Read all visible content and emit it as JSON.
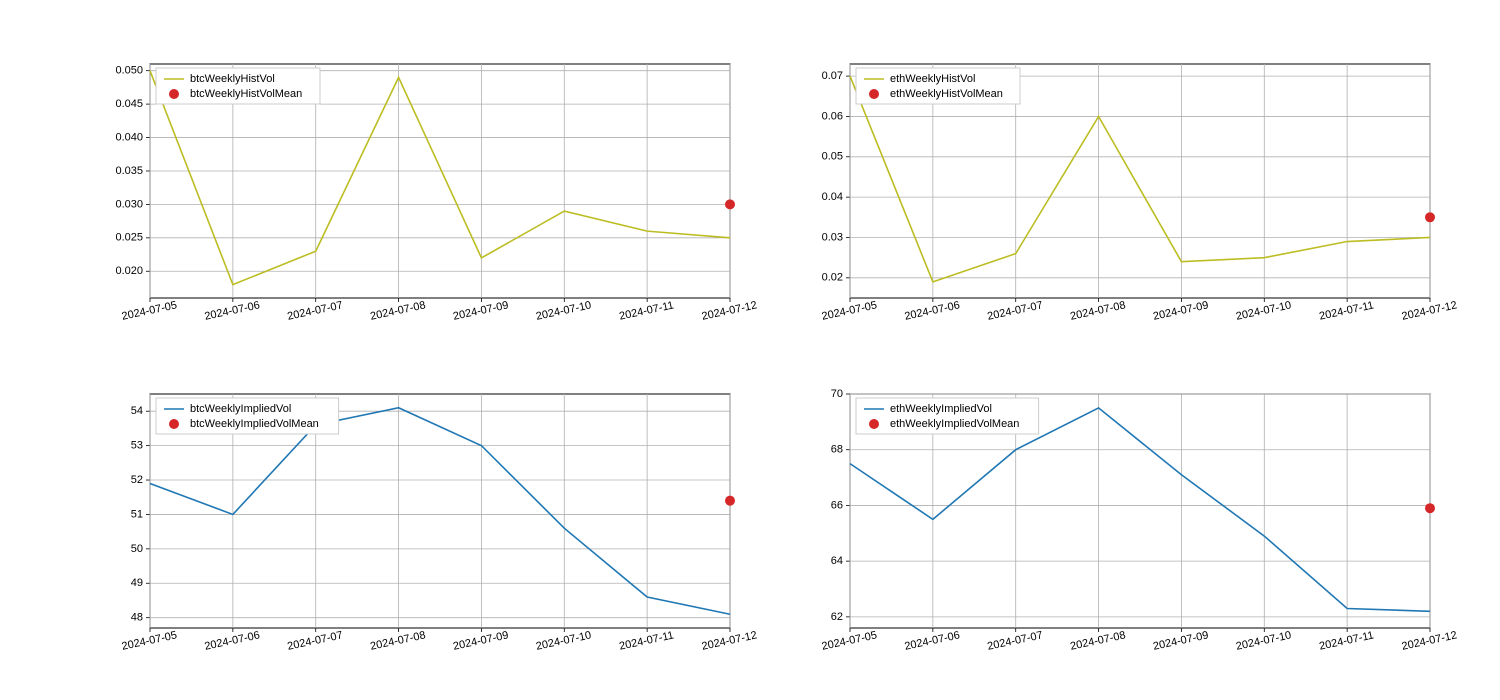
{
  "layout": {
    "figure_width": 1500,
    "figure_height": 700,
    "rows": 2,
    "cols": 2,
    "background_color": "#ffffff"
  },
  "shared": {
    "x_categories": [
      "2024-07-05",
      "2024-07-06",
      "2024-07-07",
      "2024-07-08",
      "2024-07-09",
      "2024-07-10",
      "2024-07-11",
      "2024-07-12"
    ],
    "grid_color": "#b0b0b0",
    "axis_color": "#000000",
    "font_family": "sans-serif",
    "tick_fontsize": 11,
    "legend_fontsize": 11,
    "xlabel_rotation": 12,
    "line_width": 1.6,
    "marker_radius": 5
  },
  "panels": [
    {
      "id": "btc_hist",
      "legend_line_label": "btcWeeklyHistVol",
      "legend_mean_label": "btcWeeklyHistVolMean",
      "line_color": "#bcbd22",
      "mean_color": "#d62728",
      "y_values": [
        0.05,
        0.018,
        0.023,
        0.049,
        0.022,
        0.029,
        0.026,
        0.025
      ],
      "mean_x": "2024-07-12",
      "mean_value": 0.03,
      "ylim": [
        0.016,
        0.051
      ],
      "yticks": [
        0.02,
        0.025,
        0.03,
        0.035,
        0.04,
        0.045,
        0.05
      ],
      "ytick_labels": [
        "0.020",
        "0.025",
        "0.030",
        "0.035",
        "0.040",
        "0.045",
        "0.050"
      ]
    },
    {
      "id": "eth_hist",
      "legend_line_label": "ethWeeklyHistVol",
      "legend_mean_label": "ethWeeklyHistVolMean",
      "line_color": "#bcbd22",
      "mean_color": "#d62728",
      "y_values": [
        0.07,
        0.019,
        0.026,
        0.06,
        0.024,
        0.025,
        0.029,
        0.03
      ],
      "mean_x": "2024-07-12",
      "mean_value": 0.035,
      "ylim": [
        0.015,
        0.073
      ],
      "yticks": [
        0.02,
        0.03,
        0.04,
        0.05,
        0.06,
        0.07
      ],
      "ytick_labels": [
        "0.02",
        "0.03",
        "0.04",
        "0.05",
        "0.06",
        "0.07"
      ]
    },
    {
      "id": "btc_impl",
      "legend_line_label": "btcWeeklyImpliedVol",
      "legend_mean_label": "btcWeeklyImpliedVolMean",
      "line_color": "#1f77b4",
      "mean_color": "#d62728",
      "y_values": [
        51.9,
        51.0,
        53.6,
        54.1,
        53.0,
        50.6,
        48.6,
        48.1
      ],
      "mean_x": "2024-07-12",
      "mean_value": 51.4,
      "ylim": [
        47.7,
        54.5
      ],
      "yticks": [
        48,
        49,
        50,
        51,
        52,
        53,
        54
      ],
      "ytick_labels": [
        "48",
        "49",
        "50",
        "51",
        "52",
        "53",
        "54"
      ]
    },
    {
      "id": "eth_impl",
      "legend_line_label": "ethWeeklyImpliedVol",
      "legend_mean_label": "ethWeeklyImpliedVolMean",
      "line_color": "#1f77b4",
      "mean_color": "#d62728",
      "y_values": [
        67.5,
        65.5,
        68.0,
        69.5,
        67.1,
        64.9,
        62.3,
        62.2
      ],
      "mean_x": "2024-07-12",
      "mean_value": 65.9,
      "ylim": [
        61.6,
        70.0
      ],
      "yticks": [
        62,
        64,
        66,
        68,
        70
      ],
      "ytick_labels": [
        "62",
        "64",
        "66",
        "68",
        "70"
      ]
    }
  ]
}
